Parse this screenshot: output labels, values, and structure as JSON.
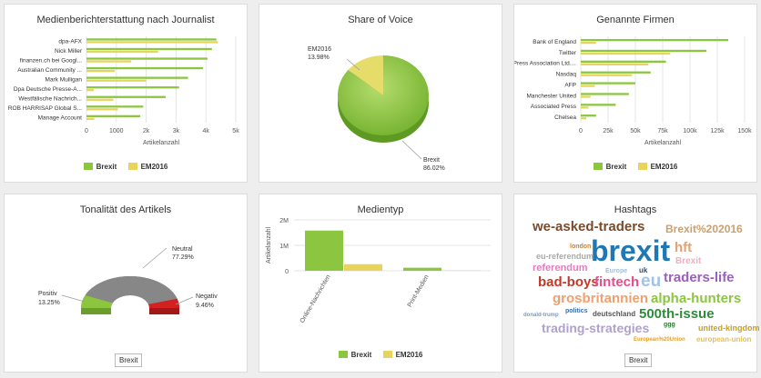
{
  "colors": {
    "brexit": "#8cc640",
    "em2016": "#e8d45c",
    "grid": "#e6e6e6"
  },
  "panels": {
    "journalists": {
      "title": "Medienberichterstattung nach Journalist",
      "xlabel": "Artikelanzahl",
      "legend": [
        "Brexit",
        "EM2016"
      ]
    },
    "share": {
      "title": "Share of Voice",
      "labels": {
        "em2016": "EM2016",
        "em2016_pct": "13.98%",
        "brexit": "Brexit",
        "brexit_pct": "86.02%"
      }
    },
    "companies": {
      "title": "Genannte Firmen",
      "xlabel": "Artikelanzahl",
      "legend": [
        "Brexit",
        "EM2016"
      ]
    },
    "tonality": {
      "title": "Tonalität des Artikels",
      "labels": {
        "neutral": "Neutral",
        "neutral_pct": "77.29%",
        "positive": "Positiv",
        "positive_pct": "13.25%",
        "negative": "Negativ",
        "negative_pct": "9.46%"
      },
      "legend_button": "Brexit"
    },
    "mediatype": {
      "title": "Medientyp",
      "ylabel": "Artikelanzahl",
      "legend": [
        "Brexit",
        "EM2016"
      ]
    },
    "hashtags": {
      "title": "Hashtags",
      "legend_button": "Brexit",
      "words": [
        {
          "text": "we-asked-traders",
          "color": "#7a4a2a"
        },
        {
          "text": "Brexit%202016",
          "color": "#c9a070"
        },
        {
          "text": "london",
          "color": "#e07a1a"
        },
        {
          "text": "brexit",
          "color": "#1f78b4"
        },
        {
          "text": "hft",
          "color": "#e8a070"
        },
        {
          "text": "eu-referendum",
          "color": "#a9a9a9"
        },
        {
          "text": "Brexit",
          "color": "#f0b0c0"
        },
        {
          "text": "referendum",
          "color": "#e37dc0"
        },
        {
          "text": "Europe",
          "color": "#9cc0e0"
        },
        {
          "text": "uk",
          "color": "#2b4f8a"
        },
        {
          "text": "traders-life",
          "color": "#9a5fc0"
        },
        {
          "text": "bad-boys",
          "color": "#c0392b"
        },
        {
          "text": "fintech",
          "color": "#e74c8b"
        },
        {
          "text": "eu",
          "color": "#9ec4e8"
        },
        {
          "text": "grosbritannien",
          "color": "#f0a070"
        },
        {
          "text": "alpha-hunters",
          "color": "#8cc640"
        },
        {
          "text": "donald-trump",
          "color": "#7a9cc0"
        },
        {
          "text": "politics",
          "color": "#3a6ea5"
        },
        {
          "text": "deutschland",
          "color": "#555555"
        },
        {
          "text": "500th-issue",
          "color": "#2e8b3a"
        },
        {
          "text": "trading-strategies",
          "color": "#b0a0d0"
        },
        {
          "text": "ggg",
          "color": "#2e7d32"
        },
        {
          "text": "united-kingdom",
          "color": "#c8a020"
        },
        {
          "text": "European%20Union",
          "color": "#e0a030"
        },
        {
          "text": "european-union",
          "color": "#e0c060"
        }
      ]
    }
  },
  "chart_data": [
    {
      "type": "bar",
      "title": "Medienberichterstattung nach Journalist",
      "xlabel": "Artikelanzahl",
      "categories": [
        "dpa-AFX",
        "Nick Miller",
        "finanzen.ch bei Googl...",
        "Australian Community ...",
        "Mark Mulligan",
        "Dpa Deutsche Presse-A...",
        "Westfälische Nachrich...",
        "ROB HARRISAP Global S...",
        "Manage Account"
      ],
      "xlim": [
        0,
        5000
      ],
      "xticks": [
        "0",
        "1000",
        "2k",
        "3k",
        "4k",
        "5k"
      ],
      "series": [
        {
          "name": "Brexit",
          "values": [
            4350,
            4200,
            4050,
            3900,
            3400,
            3100,
            2650,
            1900,
            1800
          ]
        },
        {
          "name": "EM2016",
          "values": [
            4400,
            2400,
            1500,
            950,
            2000,
            250,
            900,
            1050,
            260
          ]
        }
      ]
    },
    {
      "type": "pie",
      "title": "Share of Voice",
      "categories": [
        "Brexit",
        "EM2016"
      ],
      "values": [
        86.02,
        13.98
      ]
    },
    {
      "type": "bar",
      "title": "Genannte Firmen",
      "xlabel": "Artikelanzahl",
      "categories": [
        "Bank of England",
        "Twitter",
        "Press Association Ltd....",
        "Nasdaq",
        "AFP",
        "Manchester United",
        "Associated Press",
        "Chelsea"
      ],
      "xlim": [
        0,
        150000
      ],
      "xticks": [
        "0",
        "25k",
        "50k",
        "75k",
        "100k",
        "125k",
        "150k"
      ],
      "series": [
        {
          "name": "Brexit",
          "values": [
            135000,
            115000,
            78000,
            64000,
            50000,
            44000,
            32000,
            14000
          ]
        },
        {
          "name": "EM2016",
          "values": [
            14000,
            82000,
            62000,
            47000,
            13000,
            9000,
            7000,
            5000
          ]
        }
      ]
    },
    {
      "type": "pie",
      "title": "Tonalität des Artikels",
      "categories": [
        "Neutral",
        "Positiv",
        "Negativ"
      ],
      "values": [
        77.29,
        13.25,
        9.46
      ]
    },
    {
      "type": "bar",
      "title": "Medientyp",
      "ylabel": "Artikelanzahl",
      "categories": [
        "Online-Nachrichten",
        "Print-Medien"
      ],
      "ylim": [
        0,
        2000000
      ],
      "yticks": [
        "0",
        "1M",
        "2M"
      ],
      "series": [
        {
          "name": "Brexit",
          "values": [
            1580000,
            120000
          ]
        },
        {
          "name": "EM2016",
          "values": [
            260000,
            15000
          ]
        }
      ]
    }
  ]
}
